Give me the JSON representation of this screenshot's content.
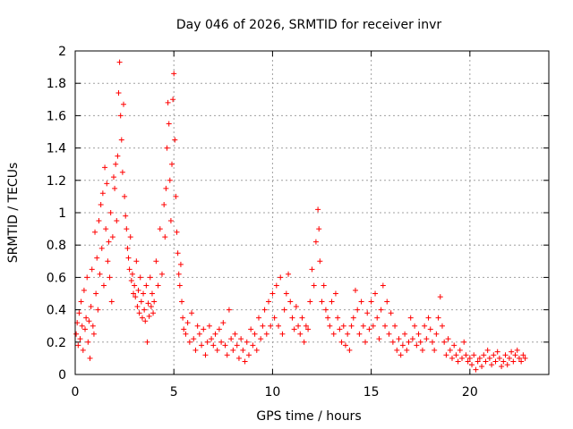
{
  "chart_data": {
    "type": "scatter",
    "title": "Day 046 of 2026, SRMTID for receiver invr",
    "xlabel": "GPS time / hours",
    "ylabel": "SRMTID / TECUs",
    "xlim": [
      0,
      24
    ],
    "ylim": [
      0,
      2
    ],
    "xticks": [
      0,
      5,
      10,
      15,
      20
    ],
    "xtick_labels": [
      "0",
      "5",
      "10",
      "15",
      "20"
    ],
    "yticks": [
      0,
      0.2,
      0.4,
      0.6,
      0.8,
      1,
      1.2,
      1.4,
      1.6,
      1.8,
      2
    ],
    "ytick_labels": [
      "0",
      "0.2",
      "0.4",
      "0.6",
      "0.8",
      "1",
      "1.2",
      "1.4",
      "1.6",
      "1.8",
      "2"
    ],
    "grid": true,
    "marker": "+",
    "series": [
      {
        "name": "SRMTID",
        "color": "#ff0000",
        "points": [
          [
            0.05,
            0.25
          ],
          [
            0.1,
            0.32
          ],
          [
            0.15,
            0.18
          ],
          [
            0.2,
            0.38
          ],
          [
            0.25,
            0.22
          ],
          [
            0.3,
            0.45
          ],
          [
            0.35,
            0.3
          ],
          [
            0.4,
            0.15
          ],
          [
            0.45,
            0.52
          ],
          [
            0.5,
            0.28
          ],
          [
            0.55,
            0.35
          ],
          [
            0.6,
            0.6
          ],
          [
            0.65,
            0.2
          ],
          [
            0.7,
            0.33
          ],
          [
            0.75,
            0.1
          ],
          [
            0.8,
            0.42
          ],
          [
            0.85,
            0.65
          ],
          [
            0.9,
            0.3
          ],
          [
            0.95,
            0.25
          ],
          [
            1.0,
            0.88
          ],
          [
            1.05,
            0.5
          ],
          [
            1.1,
            0.72
          ],
          [
            1.15,
            0.4
          ],
          [
            1.2,
            0.95
          ],
          [
            1.25,
            0.62
          ],
          [
            1.3,
            1.05
          ],
          [
            1.35,
            0.78
          ],
          [
            1.4,
            1.12
          ],
          [
            1.45,
            0.55
          ],
          [
            1.5,
            1.28
          ],
          [
            1.55,
            0.9
          ],
          [
            1.6,
            1.18
          ],
          [
            1.65,
            0.7
          ],
          [
            1.7,
            0.82
          ],
          [
            1.75,
            0.6
          ],
          [
            1.8,
            1.0
          ],
          [
            1.85,
            0.45
          ],
          [
            1.9,
            0.85
          ],
          [
            1.95,
            1.22
          ],
          [
            2.0,
            1.15
          ],
          [
            2.05,
            1.3
          ],
          [
            2.1,
            0.95
          ],
          [
            2.15,
            1.35
          ],
          [
            2.2,
            1.74
          ],
          [
            2.25,
            1.93
          ],
          [
            2.3,
            1.6
          ],
          [
            2.35,
            1.45
          ],
          [
            2.4,
            1.25
          ],
          [
            2.45,
            1.67
          ],
          [
            2.5,
            1.1
          ],
          [
            2.55,
            0.98
          ],
          [
            2.6,
            0.9
          ],
          [
            2.65,
            0.78
          ],
          [
            2.7,
            0.72
          ],
          [
            2.75,
            0.65
          ],
          [
            2.8,
            0.85
          ],
          [
            2.85,
            0.58
          ],
          [
            2.9,
            0.62
          ],
          [
            2.95,
            0.5
          ],
          [
            3.0,
            0.55
          ],
          [
            3.05,
            0.48
          ],
          [
            3.1,
            0.7
          ],
          [
            3.15,
            0.42
          ],
          [
            3.2,
            0.52
          ],
          [
            3.25,
            0.38
          ],
          [
            3.3,
            0.6
          ],
          [
            3.35,
            0.45
          ],
          [
            3.4,
            0.35
          ],
          [
            3.45,
            0.5
          ],
          [
            3.5,
            0.4
          ],
          [
            3.55,
            0.33
          ],
          [
            3.6,
            0.55
          ],
          [
            3.65,
            0.2
          ],
          [
            3.7,
            0.44
          ],
          [
            3.75,
            0.36
          ],
          [
            3.8,
            0.6
          ],
          [
            3.85,
            0.42
          ],
          [
            3.9,
            0.5
          ],
          [
            3.95,
            0.38
          ],
          [
            4.0,
            0.45
          ],
          [
            4.1,
            0.7
          ],
          [
            4.2,
            0.55
          ],
          [
            4.3,
            0.9
          ],
          [
            4.4,
            0.62
          ],
          [
            4.5,
            1.05
          ],
          [
            4.55,
            0.85
          ],
          [
            4.6,
            1.15
          ],
          [
            4.65,
            1.4
          ],
          [
            4.7,
            1.68
          ],
          [
            4.75,
            1.55
          ],
          [
            4.8,
            1.2
          ],
          [
            4.85,
            0.95
          ],
          [
            4.9,
            1.3
          ],
          [
            4.95,
            1.7
          ],
          [
            5.0,
            1.86
          ],
          [
            5.05,
            1.45
          ],
          [
            5.1,
            1.1
          ],
          [
            5.15,
            0.88
          ],
          [
            5.2,
            0.75
          ],
          [
            5.25,
            0.62
          ],
          [
            5.3,
            0.55
          ],
          [
            5.35,
            0.68
          ],
          [
            5.4,
            0.45
          ],
          [
            5.45,
            0.35
          ],
          [
            5.5,
            0.28
          ],
          [
            5.6,
            0.25
          ],
          [
            5.7,
            0.32
          ],
          [
            5.8,
            0.2
          ],
          [
            5.9,
            0.38
          ],
          [
            6.0,
            0.22
          ],
          [
            6.1,
            0.15
          ],
          [
            6.2,
            0.3
          ],
          [
            6.3,
            0.25
          ],
          [
            6.4,
            0.18
          ],
          [
            6.5,
            0.28
          ],
          [
            6.6,
            0.12
          ],
          [
            6.7,
            0.2
          ],
          [
            6.8,
            0.3
          ],
          [
            6.9,
            0.22
          ],
          [
            7.0,
            0.18
          ],
          [
            7.1,
            0.25
          ],
          [
            7.2,
            0.15
          ],
          [
            7.3,
            0.28
          ],
          [
            7.4,
            0.2
          ],
          [
            7.5,
            0.32
          ],
          [
            7.6,
            0.18
          ],
          [
            7.7,
            0.12
          ],
          [
            7.8,
            0.4
          ],
          [
            7.9,
            0.22
          ],
          [
            8.0,
            0.15
          ],
          [
            8.1,
            0.25
          ],
          [
            8.2,
            0.18
          ],
          [
            8.3,
            0.1
          ],
          [
            8.4,
            0.22
          ],
          [
            8.5,
            0.15
          ],
          [
            8.6,
            0.08
          ],
          [
            8.7,
            0.2
          ],
          [
            8.8,
            0.12
          ],
          [
            8.9,
            0.28
          ],
          [
            9.0,
            0.18
          ],
          [
            9.1,
            0.25
          ],
          [
            9.2,
            0.15
          ],
          [
            9.3,
            0.35
          ],
          [
            9.4,
            0.22
          ],
          [
            9.5,
            0.3
          ],
          [
            9.6,
            0.4
          ],
          [
            9.7,
            0.25
          ],
          [
            9.8,
            0.45
          ],
          [
            9.9,
            0.3
          ],
          [
            10.0,
            0.5
          ],
          [
            10.1,
            0.35
          ],
          [
            10.2,
            0.55
          ],
          [
            10.3,
            0.3
          ],
          [
            10.4,
            0.6
          ],
          [
            10.5,
            0.25
          ],
          [
            10.6,
            0.4
          ],
          [
            10.7,
            0.5
          ],
          [
            10.8,
            0.62
          ],
          [
            10.9,
            0.45
          ],
          [
            11.0,
            0.35
          ],
          [
            11.1,
            0.28
          ],
          [
            11.2,
            0.42
          ],
          [
            11.3,
            0.3
          ],
          [
            11.4,
            0.25
          ],
          [
            11.5,
            0.35
          ],
          [
            11.6,
            0.2
          ],
          [
            11.7,
            0.3
          ],
          [
            11.8,
            0.28
          ],
          [
            11.9,
            0.45
          ],
          [
            12.0,
            0.65
          ],
          [
            12.1,
            0.55
          ],
          [
            12.2,
            0.82
          ],
          [
            12.3,
            1.02
          ],
          [
            12.35,
            0.9
          ],
          [
            12.4,
            0.7
          ],
          [
            12.5,
            0.45
          ],
          [
            12.6,
            0.55
          ],
          [
            12.7,
            0.4
          ],
          [
            12.8,
            0.35
          ],
          [
            12.9,
            0.3
          ],
          [
            13.0,
            0.45
          ],
          [
            13.1,
            0.25
          ],
          [
            13.2,
            0.5
          ],
          [
            13.3,
            0.35
          ],
          [
            13.4,
            0.28
          ],
          [
            13.5,
            0.2
          ],
          [
            13.6,
            0.3
          ],
          [
            13.7,
            0.18
          ],
          [
            13.8,
            0.25
          ],
          [
            13.9,
            0.15
          ],
          [
            14.0,
            0.3
          ],
          [
            14.1,
            0.35
          ],
          [
            14.2,
            0.52
          ],
          [
            14.3,
            0.4
          ],
          [
            14.4,
            0.25
          ],
          [
            14.5,
            0.45
          ],
          [
            14.6,
            0.3
          ],
          [
            14.7,
            0.2
          ],
          [
            14.8,
            0.38
          ],
          [
            14.9,
            0.28
          ],
          [
            15.0,
            0.45
          ],
          [
            15.1,
            0.3
          ],
          [
            15.2,
            0.5
          ],
          [
            15.3,
            0.35
          ],
          [
            15.4,
            0.22
          ],
          [
            15.5,
            0.4
          ],
          [
            15.6,
            0.55
          ],
          [
            15.7,
            0.3
          ],
          [
            15.8,
            0.45
          ],
          [
            15.9,
            0.25
          ],
          [
            16.0,
            0.38
          ],
          [
            16.1,
            0.2
          ],
          [
            16.2,
            0.3
          ],
          [
            16.3,
            0.15
          ],
          [
            16.4,
            0.22
          ],
          [
            16.5,
            0.12
          ],
          [
            16.6,
            0.18
          ],
          [
            16.7,
            0.25
          ],
          [
            16.8,
            0.15
          ],
          [
            16.9,
            0.2
          ],
          [
            17.0,
            0.35
          ],
          [
            17.1,
            0.22
          ],
          [
            17.2,
            0.3
          ],
          [
            17.3,
            0.18
          ],
          [
            17.4,
            0.25
          ],
          [
            17.5,
            0.2
          ],
          [
            17.6,
            0.15
          ],
          [
            17.7,
            0.3
          ],
          [
            17.8,
            0.22
          ],
          [
            17.9,
            0.35
          ],
          [
            18.0,
            0.28
          ],
          [
            18.1,
            0.2
          ],
          [
            18.2,
            0.15
          ],
          [
            18.3,
            0.25
          ],
          [
            18.4,
            0.35
          ],
          [
            18.5,
            0.48
          ],
          [
            18.6,
            0.3
          ],
          [
            18.7,
            0.2
          ],
          [
            18.8,
            0.12
          ],
          [
            18.9,
            0.22
          ],
          [
            19.0,
            0.15
          ],
          [
            19.1,
            0.1
          ],
          [
            19.2,
            0.18
          ],
          [
            19.3,
            0.12
          ],
          [
            19.4,
            0.08
          ],
          [
            19.5,
            0.15
          ],
          [
            19.6,
            0.1
          ],
          [
            19.7,
            0.2
          ],
          [
            19.8,
            0.12
          ],
          [
            19.9,
            0.08
          ],
          [
            20.0,
            0.1
          ],
          [
            20.1,
            0.06
          ],
          [
            20.2,
            0.12
          ],
          [
            20.3,
            0.03
          ],
          [
            20.4,
            0.08
          ],
          [
            20.5,
            0.1
          ],
          [
            20.6,
            0.05
          ],
          [
            20.7,
            0.12
          ],
          [
            20.8,
            0.08
          ],
          [
            20.9,
            0.15
          ],
          [
            21.0,
            0.1
          ],
          [
            21.1,
            0.06
          ],
          [
            21.2,
            0.12
          ],
          [
            21.3,
            0.08
          ],
          [
            21.4,
            0.14
          ],
          [
            21.5,
            0.1
          ],
          [
            21.6,
            0.05
          ],
          [
            21.7,
            0.08
          ],
          [
            21.8,
            0.12
          ],
          [
            21.9,
            0.06
          ],
          [
            22.0,
            0.1
          ],
          [
            22.1,
            0.14
          ],
          [
            22.2,
            0.08
          ],
          [
            22.3,
            0.12
          ],
          [
            22.4,
            0.15
          ],
          [
            22.5,
            0.1
          ],
          [
            22.6,
            0.08
          ],
          [
            22.7,
            0.12
          ],
          [
            22.8,
            0.1
          ]
        ]
      }
    ]
  }
}
